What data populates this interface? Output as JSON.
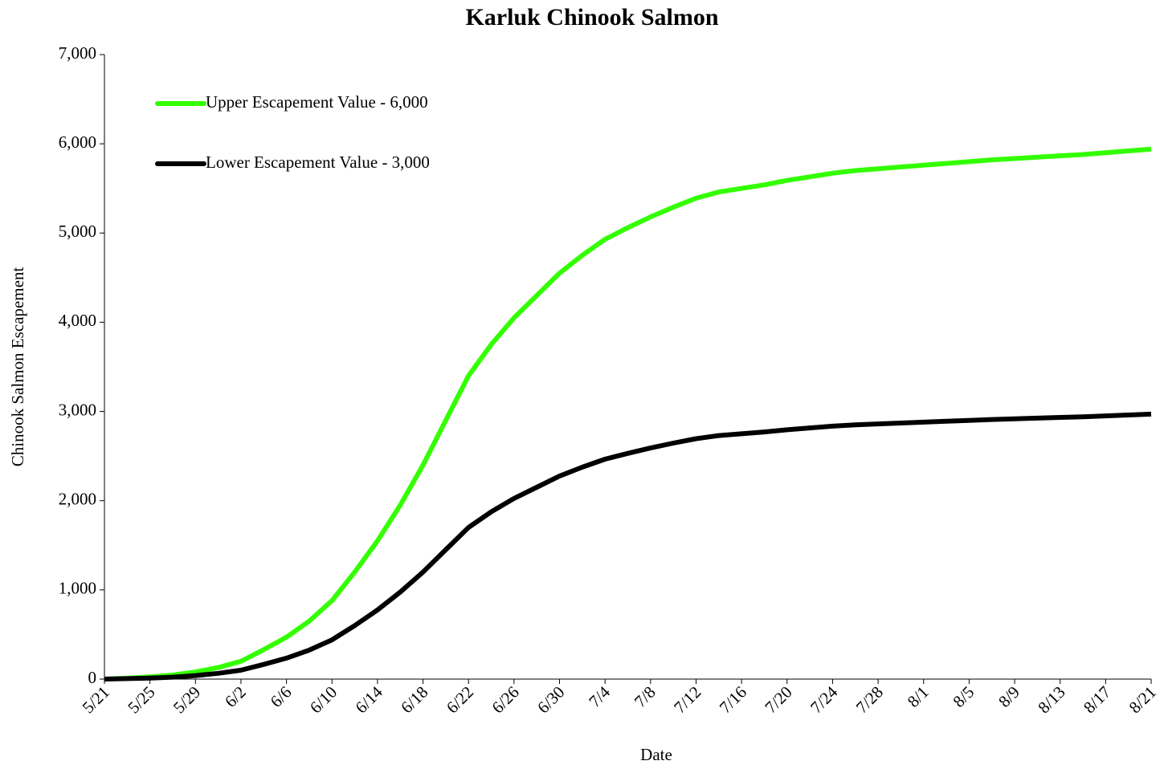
{
  "chart_data": {
    "type": "line",
    "title": "Karluk Chinook Salmon",
    "x_label": "Date",
    "y_label": "Chinook Salmon Escapement",
    "categories": [
      "5/21",
      null,
      "5/25",
      null,
      "5/29",
      null,
      "6/2",
      null,
      "6/6",
      null,
      "6/10",
      null,
      "6/14",
      null,
      "6/18",
      null,
      "6/22",
      null,
      "6/26",
      null,
      "6/30",
      null,
      "7/4",
      null,
      "7/8",
      null,
      "7/12",
      null,
      "7/16",
      null,
      "7/20",
      null,
      "7/24",
      null,
      "7/28",
      null,
      "8/1",
      null,
      "8/5",
      null,
      "8/9",
      null,
      "8/13",
      null,
      "8/17",
      null,
      "8/21"
    ],
    "series": [
      {
        "name": "Upper Escapement Value - 6,000",
        "color": "#33ff00",
        "values": [
          0,
          10,
          25,
          45,
          80,
          130,
          200,
          330,
          470,
          650,
          880,
          1200,
          1550,
          1950,
          2400,
          2900,
          3400,
          3750,
          4050,
          4300,
          4550,
          4750,
          4930,
          5060,
          5180,
          5290,
          5390,
          5460,
          5500,
          5540,
          5590,
          5630,
          5670,
          5700,
          5720,
          5740,
          5760,
          5780,
          5800,
          5820,
          5835,
          5850,
          5865,
          5880,
          5900,
          5920,
          5940
        ]
      },
      {
        "name": "Lower Escapement Value - 3,000",
        "color": "#000000",
        "values": [
          0,
          5,
          12,
          22,
          40,
          65,
          100,
          165,
          235,
          325,
          440,
          600,
          775,
          975,
          1200,
          1450,
          1700,
          1875,
          2025,
          2150,
          2275,
          2375,
          2465,
          2530,
          2590,
          2645,
          2695,
          2730,
          2750,
          2770,
          2795,
          2815,
          2835,
          2850,
          2860,
          2870,
          2880,
          2890,
          2900,
          2910,
          2918,
          2925,
          2933,
          2940,
          2950,
          2960,
          2970
        ]
      }
    ],
    "ylim": [
      0,
      7000
    ],
    "yticks": [
      0,
      {
        "value": 1000,
        "label": "1,000"
      },
      {
        "value": 2000,
        "label": "2,000"
      },
      {
        "value": 3000,
        "label": "3,000"
      },
      {
        "value": 4000,
        "label": "4,000"
      },
      {
        "value": 5000,
        "label": "5,000"
      },
      {
        "value": 6000,
        "label": "6,000"
      },
      {
        "value": 7000,
        "label": "7,000"
      }
    ],
    "legend": "upper left"
  }
}
